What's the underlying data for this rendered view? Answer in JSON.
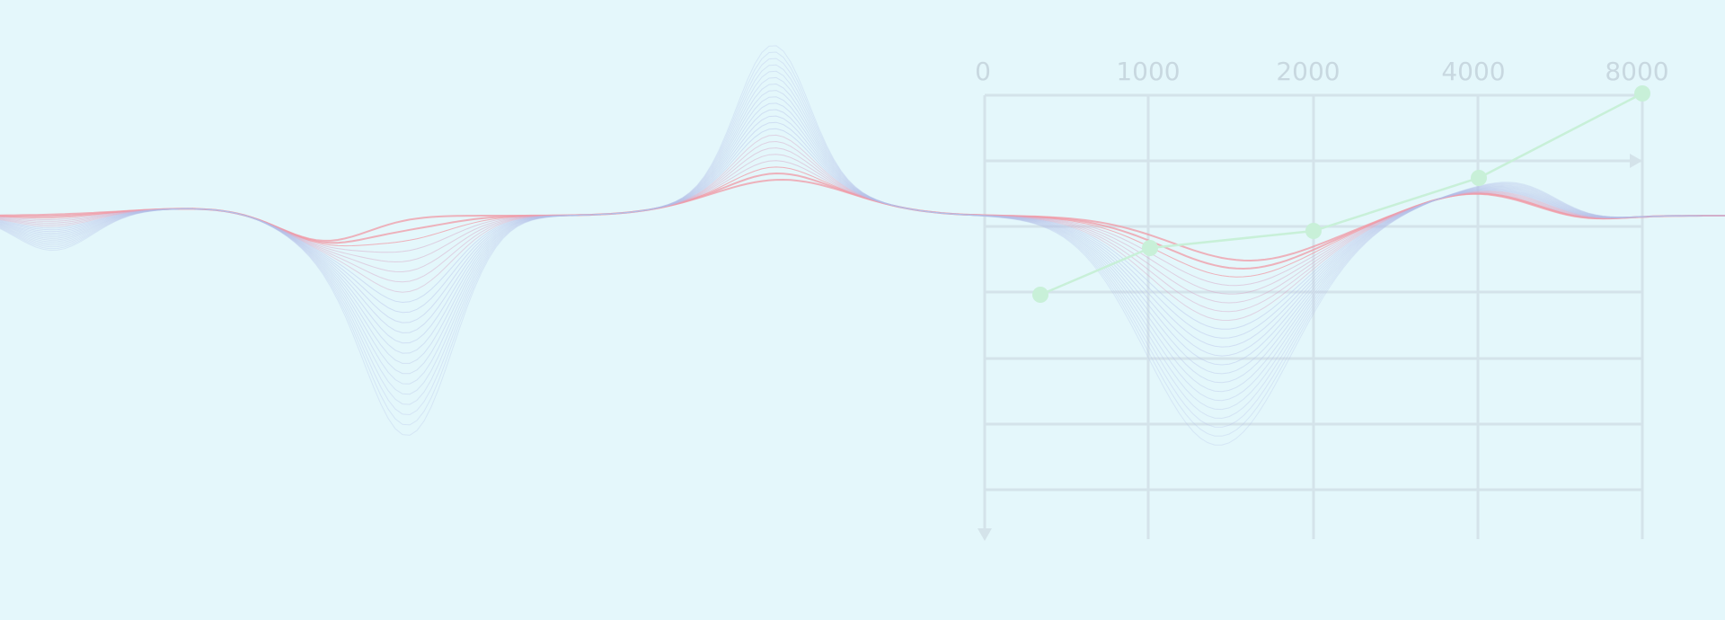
{
  "background_color": "#e4f7fb",
  "decoration": {
    "x_tick_labels": [
      "0",
      "1000",
      "2000",
      "4000",
      "8000"
    ],
    "grid_color": "#d4e3ea",
    "label_color": "#c8d8e0",
    "wave_colors": {
      "red": "#f0a0ac",
      "blue": "#b4bfe8",
      "faint": "#cfe2ee"
    },
    "trend_color": "#c8f0d8"
  }
}
